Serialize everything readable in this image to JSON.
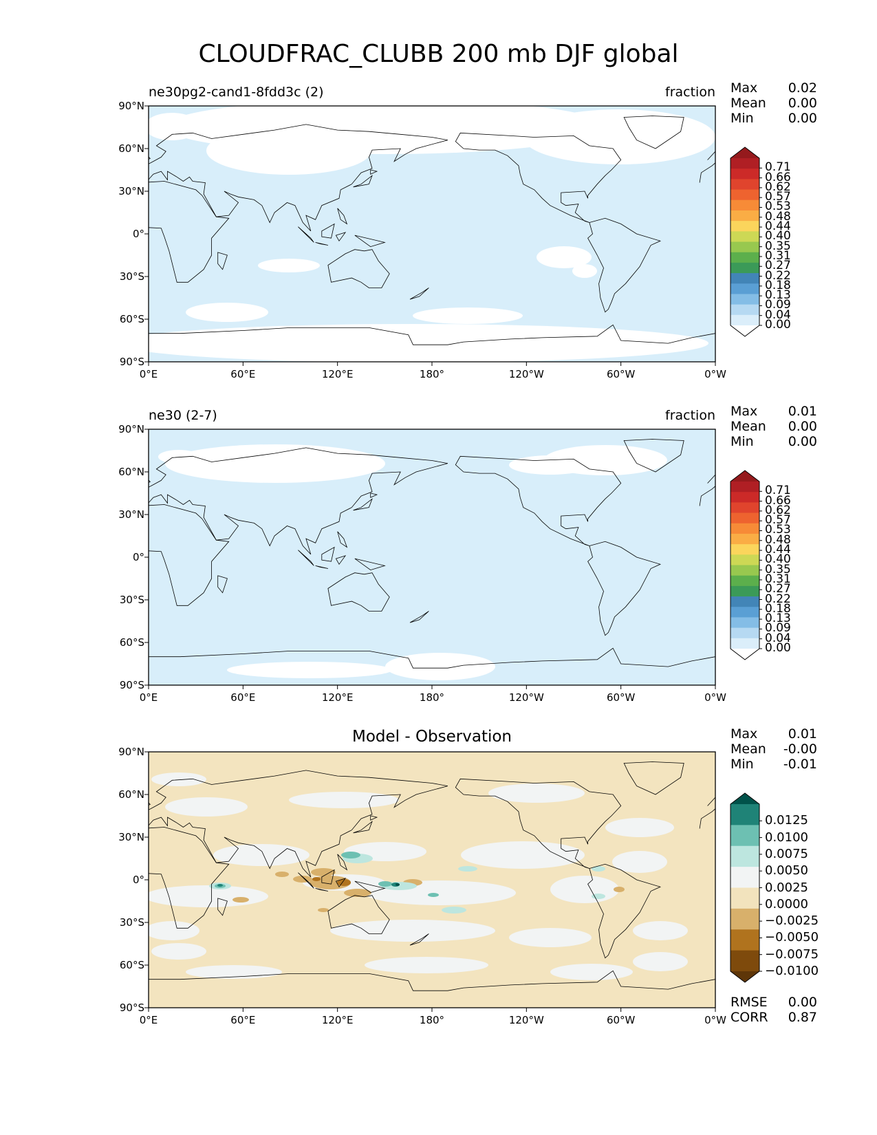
{
  "suptitle": "CLOUDFRAC_CLUBB 200 mb DJF global",
  "panels": [
    {
      "title_left": "ne30pg2-cand1-8fdd3c (2)",
      "title_right": "fraction",
      "title_center": "",
      "stats": [
        {
          "label": "Max",
          "value": "0.02"
        },
        {
          "label": "Mean",
          "value": "0.00"
        },
        {
          "label": "Min",
          "value": "0.00"
        }
      ],
      "colorbar": {
        "labels": [
          "0.71",
          "0.66",
          "0.62",
          "0.57",
          "0.53",
          "0.48",
          "0.44",
          "0.40",
          "0.35",
          "0.31",
          "0.27",
          "0.22",
          "0.18",
          "0.13",
          "0.09",
          "0.04",
          "0.00"
        ],
        "colors": [
          "#951a1d",
          "#b01f24",
          "#cc2a28",
          "#e0442d",
          "#ee632f",
          "#f78b37",
          "#faad45",
          "#fbd55c",
          "#cdd855",
          "#98c84f",
          "#5caf4c",
          "#3b9a58",
          "#4285b7",
          "#5a9fd4",
          "#84bde6",
          "#b6d9f2",
          "#dbeefa",
          "#ffffff"
        ],
        "map_fill": "#d8eefa"
      },
      "chart_data": {
        "type": "heatmap",
        "region": "global",
        "field_summary": {
          "max": 0.02,
          "mean": 0.0,
          "min": 0.0
        },
        "xticks": [
          "0°E",
          "60°E",
          "120°E",
          "180°",
          "120°W",
          "60°W",
          "0°W"
        ],
        "yticks": [
          "90°N",
          "60°N",
          "30°N",
          "0°",
          "30°S",
          "60°S",
          "90°S"
        ]
      }
    },
    {
      "title_left": "ne30 (2-7)",
      "title_right": "fraction",
      "title_center": "",
      "stats": [
        {
          "label": "Max",
          "value": "0.01"
        },
        {
          "label": "Mean",
          "value": "0.00"
        },
        {
          "label": "Min",
          "value": "0.00"
        }
      ],
      "colorbar": {
        "labels": [
          "0.71",
          "0.66",
          "0.62",
          "0.57",
          "0.53",
          "0.48",
          "0.44",
          "0.40",
          "0.35",
          "0.31",
          "0.27",
          "0.22",
          "0.18",
          "0.13",
          "0.09",
          "0.04",
          "0.00"
        ],
        "colors": [
          "#951a1d",
          "#b01f24",
          "#cc2a28",
          "#e0442d",
          "#ee632f",
          "#f78b37",
          "#faad45",
          "#fbd55c",
          "#cdd855",
          "#98c84f",
          "#5caf4c",
          "#3b9a58",
          "#4285b7",
          "#5a9fd4",
          "#84bde6",
          "#b6d9f2",
          "#dbeefa",
          "#ffffff"
        ],
        "map_fill": "#d8eefa"
      },
      "chart_data": {
        "type": "heatmap",
        "region": "global",
        "field_summary": {
          "max": 0.01,
          "mean": 0.0,
          "min": 0.0
        },
        "xticks": [
          "0°E",
          "60°E",
          "120°E",
          "180°",
          "120°W",
          "60°W",
          "0°W"
        ],
        "yticks": [
          "90°N",
          "60°N",
          "30°N",
          "0°",
          "30°S",
          "60°S",
          "90°S"
        ]
      }
    },
    {
      "title_left": "",
      "title_right": "",
      "title_center": "Model - Observation",
      "stats": [
        {
          "label": "Max",
          "value": "0.01"
        },
        {
          "label": "Mean",
          "value": "-0.00"
        },
        {
          "label": "Min",
          "value": "-0.01"
        }
      ],
      "extra_stats": [
        {
          "label": "RMSE",
          "value": "0.00"
        },
        {
          "label": "CORR",
          "value": "0.87"
        }
      ],
      "colorbar": {
        "labels": [
          "0.0125",
          "0.0100",
          "0.0075",
          "0.0050",
          "0.0025",
          "0.0000",
          "−0.0025",
          "−0.0050",
          "−0.0075",
          "−0.0100"
        ],
        "colors": [
          "#01524a",
          "#1f8377",
          "#6dc0b2",
          "#bde6df",
          "#f2f4f4",
          "#f2e3bd",
          "#d8b06b",
          "#b0731e",
          "#7e4a0c",
          "#5e3608"
        ],
        "map_fill": "#f3e4bf"
      },
      "chart_data": {
        "type": "heatmap",
        "region": "global",
        "field_summary": {
          "max": 0.01,
          "mean": -0.0,
          "min": -0.01,
          "rmse": 0.0,
          "corr": 0.87
        },
        "xticks": [
          "0°E",
          "60°E",
          "120°E",
          "180°",
          "120°W",
          "60°W",
          "0°W"
        ],
        "yticks": [
          "90°N",
          "60°N",
          "30°N",
          "0°",
          "30°S",
          "60°S",
          "90°S"
        ]
      }
    }
  ]
}
